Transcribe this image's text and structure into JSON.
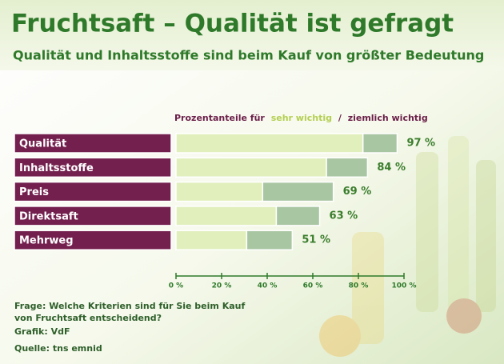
{
  "chart_data": {
    "type": "stacked_barh",
    "title": "Fruchtsaft – Qualität ist gefragt",
    "subtitle": "Qualität und Inhaltsstoffe sind beim Kauf von größter Bedeutung",
    "legend_title": "Prozentanteile für",
    "legend_separator": "/",
    "categories": [
      "Qualität",
      "Inhaltsstoffe",
      "Preis",
      "Direktsaft",
      "Mehrweg"
    ],
    "series": [
      {
        "name": "sehr wichtig",
        "color": "#e1efbd",
        "values": [
          82,
          66,
          38,
          44,
          31
        ]
      },
      {
        "name": "ziemlich wichtig",
        "color": "#a9c6a2",
        "values": [
          15,
          18,
          31,
          19,
          20
        ]
      }
    ],
    "total_labels": [
      "97 %",
      "84 %",
      "69 %",
      "63 %",
      "51 %"
    ],
    "xlim": [
      0,
      100
    ],
    "xticks": [
      {
        "value": 0,
        "label": "0 %"
      },
      {
        "value": 20,
        "label": "20 %"
      },
      {
        "value": 40,
        "label": "40 %"
      },
      {
        "value": 60,
        "label": "60 %"
      },
      {
        "value": 80,
        "label": "80 %"
      },
      {
        "value": 100,
        "label": "100 %"
      }
    ],
    "footer": {
      "question": [
        "Frage: Welche Kriterien sind für Sie beim Kauf",
        "von Fruchtsaft entscheidend?"
      ],
      "graphic": "Grafik: VdF",
      "source": "Quelle: tns emnid"
    }
  }
}
